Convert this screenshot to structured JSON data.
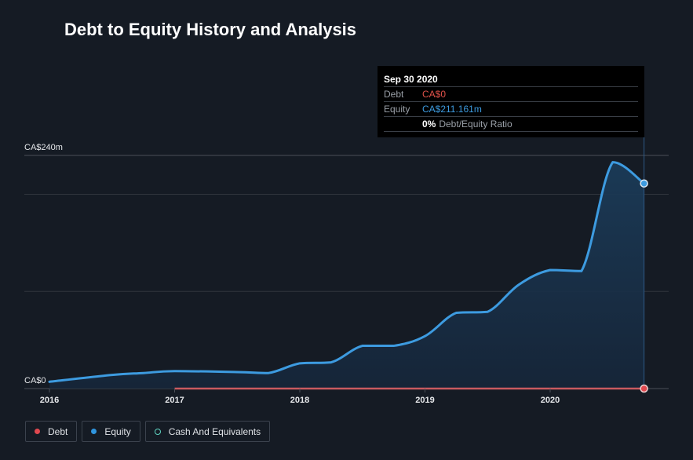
{
  "title": "Debt to Equity History and Analysis",
  "tooltip": {
    "date": "Sep 30 2020",
    "debt_label": "Debt",
    "debt_value": "CA$0",
    "equity_label": "Equity",
    "equity_value": "CA$211.161m",
    "ratio_value": "0%",
    "ratio_label": "Debt/Equity Ratio"
  },
  "legend": [
    {
      "label": "Debt",
      "color": "#e0484f",
      "icon": "filled-dot"
    },
    {
      "label": "Equity",
      "color": "#2f95de",
      "icon": "filled-dot"
    },
    {
      "label": "Cash And Equivalents",
      "color": "#5fd3c0",
      "icon": "hollow-dot"
    }
  ],
  "chart_data": {
    "type": "area",
    "title": "Debt to Equity History and Analysis",
    "xlabel": "",
    "ylabel": "",
    "y_tick_labels": [
      "CA$0",
      "CA$240m"
    ],
    "x_tick_labels": [
      "2016",
      "2017",
      "2018",
      "2019",
      "2020"
    ],
    "x_ticks": [
      2016,
      2017,
      2018,
      2019,
      2020
    ],
    "xlim": [
      2015.9,
      2020.95
    ],
    "ylim": [
      0,
      240
    ],
    "gridlines_y": [
      0,
      100,
      200,
      240
    ],
    "grid": true,
    "legend_position": "bottom-left",
    "units": "CA$ millions",
    "series": [
      {
        "name": "Equity",
        "color": "#3d9be0",
        "x": [
          2016.0,
          2016.5,
          2016.75,
          2017.0,
          2017.5,
          2017.75,
          2018.0,
          2018.25,
          2018.5,
          2018.75,
          2019.0,
          2019.25,
          2019.5,
          2019.75,
          2020.0,
          2020.25,
          2020.5,
          2020.75
        ],
        "values": [
          7,
          14,
          16,
          18,
          17,
          16,
          26,
          27,
          44,
          44,
          54,
          78,
          79,
          107,
          122,
          121,
          233,
          211.161
        ]
      },
      {
        "name": "Debt",
        "color": "#e0484f",
        "x": [
          2017.0,
          2020.75
        ],
        "values": [
          0,
          0
        ]
      }
    ],
    "highlight": {
      "x": 2020.75,
      "label": "Sep 30 2020"
    }
  }
}
